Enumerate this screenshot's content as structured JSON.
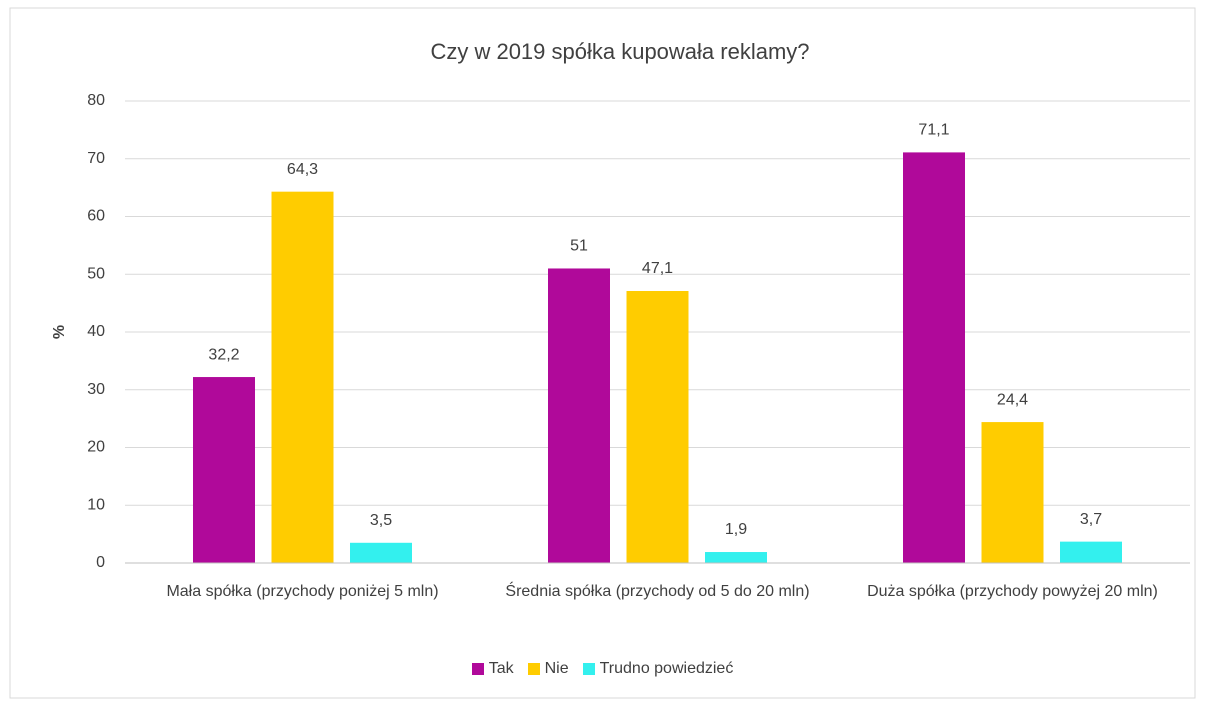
{
  "chart_data": {
    "type": "bar",
    "title": "Czy w 2019 spółka kupowała reklamy?",
    "y_label": "%",
    "categories": [
      "Mała spółka (przychody poniżej 5 mln)",
      "Średnia spółka (przychody od 5 do 20 mln)",
      "Duża spółka (przychody powyżej 20 mln)"
    ],
    "series": [
      {
        "name": "Tak",
        "color": "#b0099a",
        "values": [
          32.2,
          51,
          71.1
        ],
        "value_labels": [
          "32,2",
          "51",
          "71,1"
        ]
      },
      {
        "name": "Nie",
        "color": "#ffcc00",
        "values": [
          64.3,
          47.1,
          24.4
        ],
        "value_labels": [
          "64,3",
          "47,1",
          "24,4"
        ]
      },
      {
        "name": "Trudno powiedzieć",
        "color": "#33f0ee",
        "values": [
          3.5,
          1.9,
          3.7
        ],
        "value_labels": [
          "3,5",
          "1,9",
          "3,7"
        ]
      }
    ],
    "ylim": [
      0,
      80
    ],
    "yticks": [
      0,
      10,
      20,
      30,
      40,
      50,
      60,
      70,
      80
    ],
    "grid": true,
    "legend": "bottom"
  }
}
